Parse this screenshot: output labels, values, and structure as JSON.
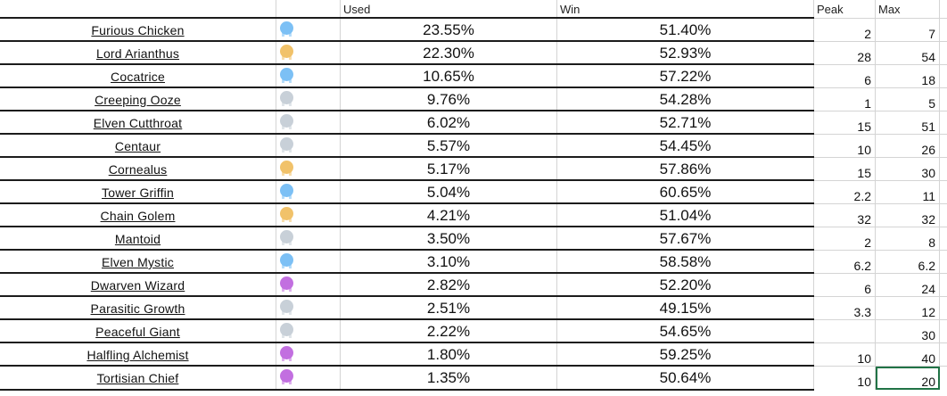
{
  "headers": {
    "name": "",
    "icon": "",
    "used": "Used",
    "win": "Win",
    "peak": "Peak",
    "max": "Max"
  },
  "rows": [
    {
      "name": "Furious Chicken",
      "rarity": "blue",
      "used": "23.55%",
      "win": "51.40%",
      "peak": "2",
      "max": "7"
    },
    {
      "name": "Lord Arianthus",
      "rarity": "gold",
      "used": "22.30%",
      "win": "52.93%",
      "peak": "28",
      "max": "54"
    },
    {
      "name": "Cocatrice",
      "rarity": "blue",
      "used": "10.65%",
      "win": "57.22%",
      "peak": "6",
      "max": "18"
    },
    {
      "name": "Creeping Ooze",
      "rarity": "silver",
      "used": "9.76%",
      "win": "54.28%",
      "peak": "1",
      "max": "5"
    },
    {
      "name": "Elven Cutthroat",
      "rarity": "silver",
      "used": "6.02%",
      "win": "52.71%",
      "peak": "15",
      "max": "51"
    },
    {
      "name": "Centaur",
      "rarity": "silver",
      "used": "5.57%",
      "win": "54.45%",
      "peak": "10",
      "max": "26"
    },
    {
      "name": "Cornealus",
      "rarity": "gold",
      "used": "5.17%",
      "win": "57.86%",
      "peak": "15",
      "max": "30"
    },
    {
      "name": "Tower Griffin",
      "rarity": "blue",
      "used": "5.04%",
      "win": "60.65%",
      "peak": "2.2",
      "max": "11"
    },
    {
      "name": "Chain Golem",
      "rarity": "gold",
      "used": "4.21%",
      "win": "51.04%",
      "peak": "32",
      "max": "32"
    },
    {
      "name": "Mantoid",
      "rarity": "silver",
      "used": "3.50%",
      "win": "57.67%",
      "peak": "2",
      "max": "8"
    },
    {
      "name": "Elven Mystic",
      "rarity": "blue",
      "used": "3.10%",
      "win": "58.58%",
      "peak": "6.2",
      "max": "6.2"
    },
    {
      "name": "Dwarven Wizard",
      "rarity": "purple",
      "used": "2.82%",
      "win": "52.20%",
      "peak": "6",
      "max": "24"
    },
    {
      "name": "Parasitic Growth",
      "rarity": "silver",
      "used": "2.51%",
      "win": "49.15%",
      "peak": "3.3",
      "max": "12"
    },
    {
      "name": "Peaceful Giant",
      "rarity": "silver",
      "used": "2.22%",
      "win": "54.65%",
      "peak": "",
      "max": "30"
    },
    {
      "name": "Halfling Alchemist",
      "rarity": "purple",
      "used": "1.80%",
      "win": "59.25%",
      "peak": "10",
      "max": "40"
    },
    {
      "name": "Tortisian Chief",
      "rarity": "purple",
      "used": "1.35%",
      "win": "50.64%",
      "peak": "10",
      "max": "20"
    }
  ],
  "rarity_colors": {
    "blue": "#7cc0f5",
    "gold": "#f1c26a",
    "silver": "#c8d0d8",
    "purple": "#c26fe0"
  },
  "selection_color": "#217346"
}
